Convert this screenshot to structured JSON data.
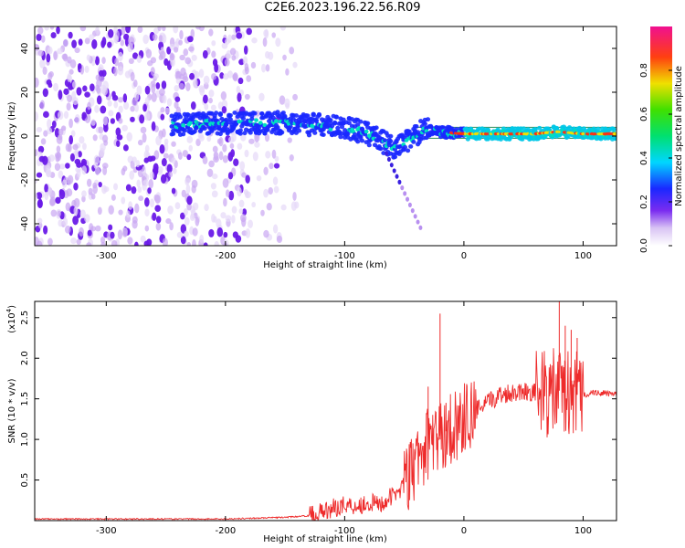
{
  "title": "C2E6.2023.196.22.56.R09",
  "colors": {
    "spectrogram_low": "#f3ecfb",
    "spectrogram_mid": "#6a1ae8",
    "snr_line": "#ee2b2b",
    "baseline": "#2e8b57"
  },
  "chart_data": [
    {
      "type": "heatmap",
      "title": "",
      "xlabel": "Height of straight line (km)",
      "ylabel": "Frequency (Hz)",
      "xlim": [
        -360,
        128
      ],
      "ylim": [
        -50,
        50
      ],
      "xticks": [
        -300,
        -200,
        -100,
        0,
        100
      ],
      "yticks": [
        -40,
        -20,
        0,
        20,
        40
      ],
      "colorbar": {
        "label": "Normalized spectral amplitude",
        "range": [
          0.0,
          1.0
        ],
        "ticks": [
          "0.0",
          "0.2",
          "0.4",
          "0.6",
          "0.8"
        ]
      },
      "ridge": {
        "description_points_x": [
          -245,
          -200,
          -150,
          -120,
          -100,
          -80,
          -60,
          -45,
          -35,
          -20,
          0,
          20,
          60,
          80,
          100,
          128
        ],
        "frequency_hz": [
          5,
          6,
          6,
          5,
          4,
          1,
          -5,
          -2,
          3,
          2,
          1,
          1,
          1,
          2,
          1,
          1
        ]
      }
    },
    {
      "type": "line",
      "title": "",
      "xlabel": "Height of straight line (km)",
      "ylabel": "SNR (10 * v/v)",
      "y_scale_note": "(x10",
      "y_scale_exp": "4",
      "xlim": [
        -360,
        128
      ],
      "ylim": [
        0,
        2.7
      ],
      "xticks": [
        -300,
        -200,
        -100,
        0,
        100
      ],
      "yticks": [
        0.5,
        1.0,
        1.5,
        2.0,
        2.5
      ],
      "series": [
        {
          "x": [
            -360,
            -300,
            -250,
            -200,
            -150,
            -130,
            -120,
            -110,
            -100,
            -90,
            -80,
            -70,
            -60,
            -50,
            -45,
            -40,
            -35,
            -30,
            -25,
            -20,
            -15,
            -10,
            -5,
            0,
            10,
            20,
            30,
            40,
            50,
            60,
            70,
            80,
            90,
            100,
            110,
            128
          ],
          "y": [
            0.02,
            0.02,
            0.02,
            0.02,
            0.04,
            0.06,
            0.1,
            0.15,
            0.2,
            0.18,
            0.22,
            0.2,
            0.3,
            0.45,
            0.55,
            0.7,
            0.85,
            0.95,
            1.05,
            1.0,
            1.1,
            1.15,
            1.2,
            1.25,
            1.35,
            1.45,
            1.55,
            1.58,
            1.6,
            1.58,
            1.55,
            1.6,
            1.55,
            1.55,
            1.58,
            1.55
          ],
          "spikes": [
            {
              "x": -20,
              "y": 2.55
            },
            {
              "x": -30,
              "y": 1.65
            },
            {
              "x": -15,
              "y": 1.45
            },
            {
              "x": 80,
              "y": 2.7
            },
            {
              "x": 85,
              "y": 2.4
            },
            {
              "x": 90,
              "y": 2.35
            },
            {
              "x": 95,
              "y": 2.25
            }
          ]
        }
      ]
    }
  ]
}
